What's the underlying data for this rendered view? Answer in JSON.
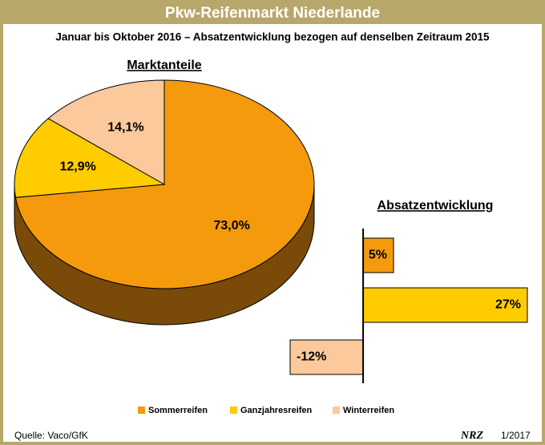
{
  "title": "Pkw-Reifenmarkt Niederlande",
  "subtitle": "Januar bis Oktober 2016 – Absatzentwicklung bezogen auf denselben Zeitraum 2015",
  "source": "Quelle: Vaco/GfK",
  "logo": "NRZ",
  "date": "1/2017",
  "chart_data": [
    {
      "type": "pie",
      "title": "Marktanteile",
      "categories": [
        "Sommerreifen",
        "Ganzjahresreifen",
        "Winterreifen"
      ],
      "values": [
        73.0,
        12.9,
        14.1
      ],
      "value_labels": [
        "73,0%",
        "12,9%",
        "14,1%"
      ],
      "colors": [
        "#f59a0c",
        "#ffcc00",
        "#fbc99b"
      ]
    },
    {
      "type": "bar",
      "orientation": "horizontal",
      "title": "Absatzentwicklung",
      "values": [
        5,
        27,
        -12
      ],
      "value_labels": [
        "5%",
        "27%",
        "-12%"
      ],
      "colors": [
        "#f59a0c",
        "#ffcc00",
        "#fbc99b"
      ]
    }
  ]
}
